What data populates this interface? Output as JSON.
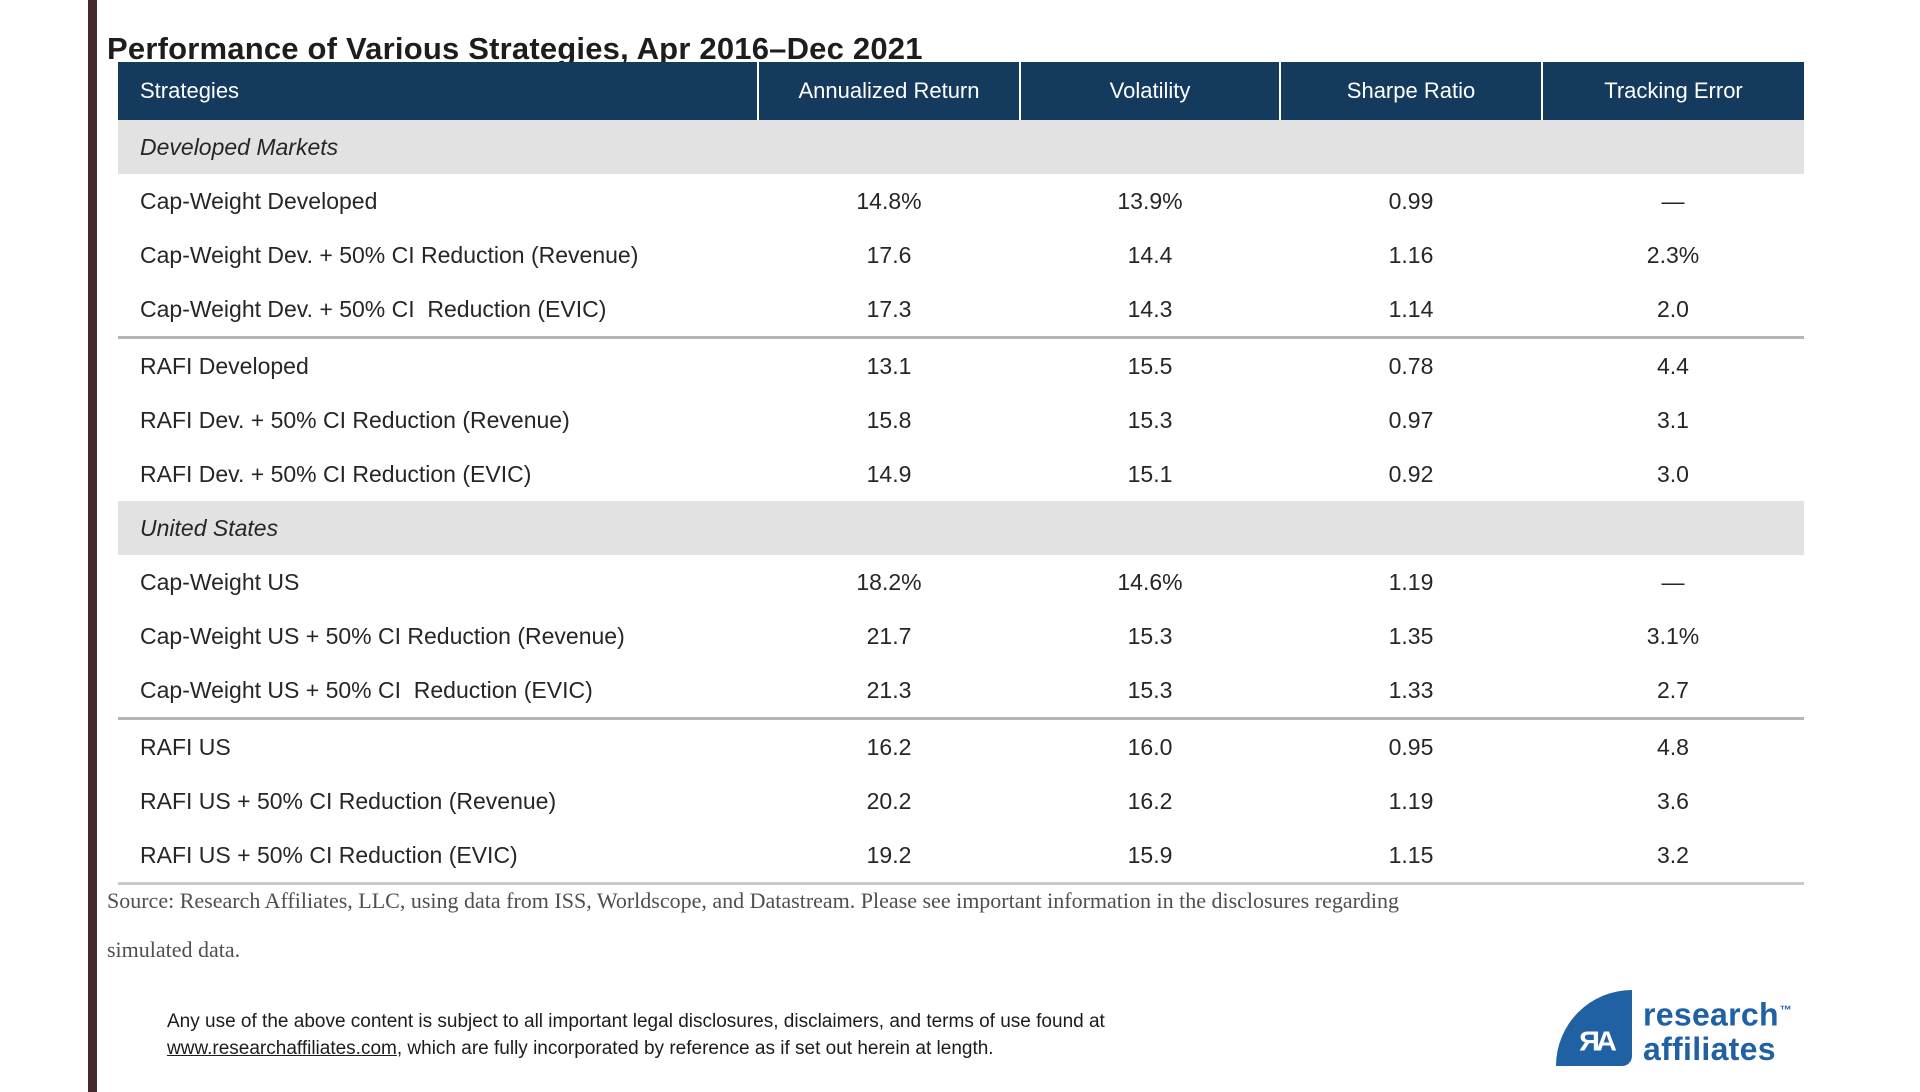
{
  "title": "Performance of Various Strategies, Apr 2016–Dec 2021",
  "table": {
    "columns": [
      "Strategies",
      "Annualized Return",
      "Volatility",
      "Sharpe Ratio",
      "Tracking Error"
    ],
    "sections": [
      {
        "label": "Developed Markets",
        "groups": [
          {
            "rows": [
              {
                "strategy": "Cap-Weight Developed",
                "annualized_return": "14.8%",
                "volatility": "13.9%",
                "sharpe_ratio": "0.99",
                "tracking_error": "—"
              },
              {
                "strategy": "Cap-Weight Dev. + 50% CI Reduction (Revenue)",
                "annualized_return": "17.6",
                "volatility": "14.4",
                "sharpe_ratio": "1.16",
                "tracking_error": "2.3%"
              },
              {
                "strategy": "Cap-Weight Dev. + 50% CI  Reduction (EVIC)",
                "annualized_return": "17.3",
                "volatility": "14.3",
                "sharpe_ratio": "1.14",
                "tracking_error": "2.0"
              }
            ]
          },
          {
            "rows": [
              {
                "strategy": "RAFI Developed",
                "annualized_return": "13.1",
                "volatility": "15.5",
                "sharpe_ratio": "0.78",
                "tracking_error": "4.4"
              },
              {
                "strategy": "RAFI Dev. + 50% CI Reduction (Revenue)",
                "annualized_return": "15.8",
                "volatility": "15.3",
                "sharpe_ratio": "0.97",
                "tracking_error": "3.1"
              },
              {
                "strategy": "RAFI Dev. + 50% CI Reduction (EVIC)",
                "annualized_return": "14.9",
                "volatility": "15.1",
                "sharpe_ratio": "0.92",
                "tracking_error": "3.0"
              }
            ]
          }
        ]
      },
      {
        "label": "United States",
        "groups": [
          {
            "rows": [
              {
                "strategy": "Cap-Weight US",
                "annualized_return": "18.2%",
                "volatility": "14.6%",
                "sharpe_ratio": "1.19",
                "tracking_error": "—"
              },
              {
                "strategy": "Cap-Weight US + 50% CI Reduction (Revenue)",
                "annualized_return": "21.7",
                "volatility": "15.3",
                "sharpe_ratio": "1.35",
                "tracking_error": "3.1%"
              },
              {
                "strategy": "Cap-Weight US + 50% CI  Reduction (EVIC)",
                "annualized_return": "21.3",
                "volatility": "15.3",
                "sharpe_ratio": "1.33",
                "tracking_error": "2.7"
              }
            ]
          },
          {
            "rows": [
              {
                "strategy": "RAFI US",
                "annualized_return": "16.2",
                "volatility": "16.0",
                "sharpe_ratio": "0.95",
                "tracking_error": "4.8"
              },
              {
                "strategy": "RAFI US + 50% CI Reduction (Revenue)",
                "annualized_return": "20.2",
                "volatility": "16.2",
                "sharpe_ratio": "1.19",
                "tracking_error": "3.6"
              },
              {
                "strategy": "RAFI US + 50% CI Reduction (EVIC)",
                "annualized_return": "19.2",
                "volatility": "15.9",
                "sharpe_ratio": "1.15",
                "tracking_error": "3.2"
              }
            ]
          }
        ]
      }
    ]
  },
  "source_note": {
    "line1": "Source: Research Affiliates, LLC, using data from ISS, Worldscope, and Datastream. Please see important information in the disclosures regarding",
    "line2": "simulated data."
  },
  "disclaimer": {
    "line1": "Any use of the above content is subject to all important legal disclosures, disclaimers, and terms of use found at",
    "link": "www.researchaffiliates.com",
    "line2_rest": ", which are fully incorporated by reference as if set out herein at length."
  },
  "logo": {
    "monogram": "ЯA",
    "line1": "research",
    "tm": "™",
    "line2": "affiliates"
  },
  "colors": {
    "header_bg": "#143a5e",
    "section_bg": "#e2e2e2",
    "logo_blue": "#2061a3",
    "accent_strip": "#45272e"
  }
}
